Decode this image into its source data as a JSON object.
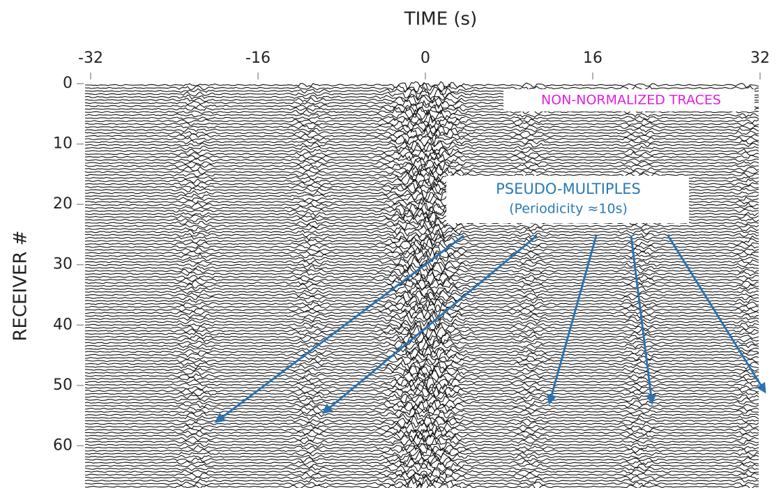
{
  "chart_data": {
    "type": "seismic",
    "xlabel": "TIME (s)",
    "ylabel": "RECEIVER #",
    "xlim": [
      -32,
      32
    ],
    "xticks": [
      -32,
      -16,
      0,
      16,
      32
    ],
    "ylim": [
      0,
      67
    ],
    "yticks": [
      0,
      10,
      20,
      30,
      40,
      50,
      60
    ],
    "y_inverted": true,
    "trace_color": "#111111",
    "annotations": {
      "note": "NON-NORMALIZED TRACES",
      "label": "PSEUDO-MULTIPLES",
      "sublabel": "(Periodicity ≈10s)"
    },
    "annotation_colors": {
      "note": "#e020e0",
      "label": "#2a7ab8"
    }
  }
}
